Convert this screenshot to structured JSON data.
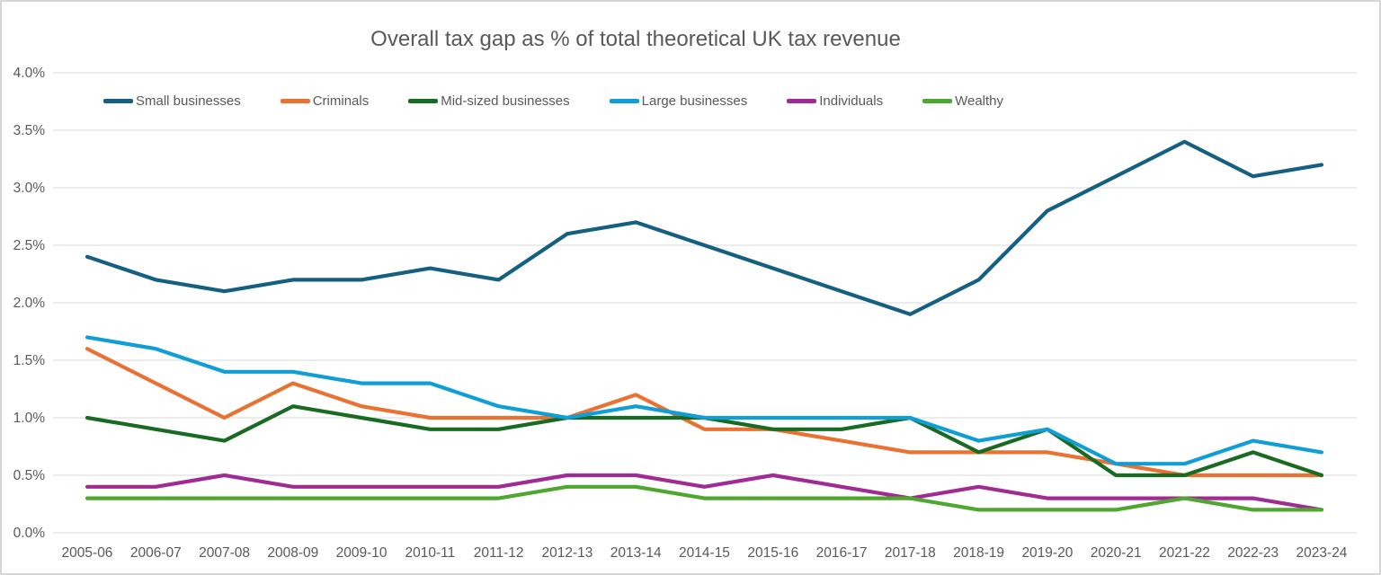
{
  "chart_data": {
    "type": "line",
    "title": "Overall tax gap as % of total theoretical UK tax revenue",
    "xlabel": "",
    "ylabel": "",
    "ylim": [
      0.0,
      4.0
    ],
    "grid": true,
    "legend_position": "top",
    "y_ticks": [
      "0.0%",
      "0.5%",
      "1.0%",
      "1.5%",
      "2.0%",
      "2.5%",
      "3.0%",
      "3.5%",
      "4.0%"
    ],
    "y_tick_values": [
      0.0,
      0.5,
      1.0,
      1.5,
      2.0,
      2.5,
      3.0,
      3.5,
      4.0
    ],
    "categories": [
      "2005-06",
      "2006-07",
      "2007-08",
      "2008-09",
      "2009-10",
      "2010-11",
      "2011-12",
      "2012-13",
      "2013-14",
      "2014-15",
      "2015-16",
      "2016-17",
      "2017-18",
      "2018-19",
      "2019-20",
      "2020-21",
      "2021-22",
      "2022-23",
      "2023-24"
    ],
    "series": [
      {
        "name": "Small businesses",
        "color": "#156082",
        "values": [
          2.4,
          2.2,
          2.1,
          2.2,
          2.2,
          2.3,
          2.2,
          2.6,
          2.7,
          2.5,
          2.3,
          2.1,
          1.9,
          2.2,
          2.8,
          3.1,
          3.4,
          3.1,
          3.2
        ]
      },
      {
        "name": "Criminals",
        "color": "#E97132",
        "values": [
          1.6,
          1.3,
          1.0,
          1.3,
          1.1,
          1.0,
          1.0,
          1.0,
          1.2,
          0.9,
          0.9,
          0.8,
          0.7,
          0.7,
          0.7,
          0.6,
          0.5,
          0.5,
          0.5
        ]
      },
      {
        "name": "Mid-sized businesses",
        "color": "#196B24",
        "values": [
          1.0,
          0.9,
          0.8,
          1.1,
          1.0,
          0.9,
          0.9,
          1.0,
          1.0,
          1.0,
          0.9,
          0.9,
          1.0,
          0.7,
          0.9,
          0.5,
          0.5,
          0.7,
          0.5
        ]
      },
      {
        "name": "Large businesses",
        "color": "#0F9ED5",
        "values": [
          1.7,
          1.6,
          1.4,
          1.4,
          1.3,
          1.3,
          1.1,
          1.0,
          1.1,
          1.0,
          1.0,
          1.0,
          1.0,
          0.8,
          0.9,
          0.6,
          0.6,
          0.8,
          0.7
        ]
      },
      {
        "name": "Individuals",
        "color": "#A02B93",
        "values": [
          0.4,
          0.4,
          0.5,
          0.4,
          0.4,
          0.4,
          0.4,
          0.5,
          0.5,
          0.4,
          0.5,
          0.4,
          0.3,
          0.4,
          0.3,
          0.3,
          0.3,
          0.3,
          0.2
        ]
      },
      {
        "name": "Wealthy",
        "color": "#4EA72E",
        "values": [
          0.3,
          0.3,
          0.3,
          0.3,
          0.3,
          0.3,
          0.3,
          0.4,
          0.4,
          0.3,
          0.3,
          0.3,
          0.3,
          0.2,
          0.2,
          0.2,
          0.3,
          0.2,
          0.2
        ]
      }
    ],
    "colors": {
      "text": "#595959",
      "gridline": "#D9D9D9",
      "background": "#FFFFFF"
    }
  }
}
